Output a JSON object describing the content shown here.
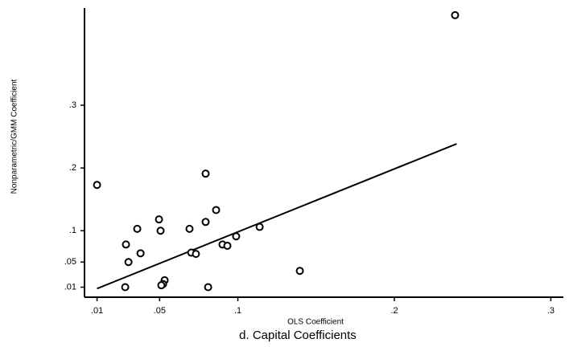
{
  "chart_data": {
    "type": "scatter",
    "title": "d. Capital Coefficients",
    "x_label": "OLS Coefficient",
    "y_label": "Nonparametric/GMM Coefficient",
    "color": "#000000",
    "x": [
      0.2388,
      0.01,
      0.0794,
      0.0861,
      0.0496,
      0.0794,
      0.0357,
      0.0506,
      0.0691,
      0.1139,
      0.0285,
      0.0378,
      0.0301,
      0.0702,
      0.0732,
      0.0902,
      0.0933,
      0.0989,
      0.1396,
      0.028,
      0.0532,
      0.0522,
      0.0511,
      0.081
    ],
    "values": [
      0.4436,
      0.173,
      0.191,
      0.133,
      0.118,
      0.114,
      0.103,
      0.1,
      0.103,
      0.106,
      0.078,
      0.064,
      0.05,
      0.065,
      0.063,
      0.078,
      0.076,
      0.091,
      0.036,
      0.01,
      0.021,
      0.015,
      0.013,
      0.01
    ],
    "fit_line": {
      "x": [
        0.01,
        0.2398
      ],
      "y": [
        0.0077,
        0.2385
      ]
    },
    "xlim": [
      0.002,
      0.308
    ],
    "ylim": [
      -0.006,
      0.455
    ],
    "xticks": [
      {
        "value": 0.01,
        "label": ".01"
      },
      {
        "value": 0.05,
        "label": ".05"
      },
      {
        "value": 0.1,
        "label": ".1"
      },
      {
        "value": 0.2,
        "label": ".2"
      },
      {
        "value": 0.3,
        "label": ".3"
      }
    ],
    "yticks": [
      {
        "value": 0.01,
        "label": ".01"
      },
      {
        "value": 0.05,
        "label": ".05"
      },
      {
        "value": 0.1,
        "label": ".1"
      },
      {
        "value": 0.2,
        "label": ".2"
      },
      {
        "value": 0.3,
        "label": ".3"
      }
    ],
    "grid": false
  }
}
